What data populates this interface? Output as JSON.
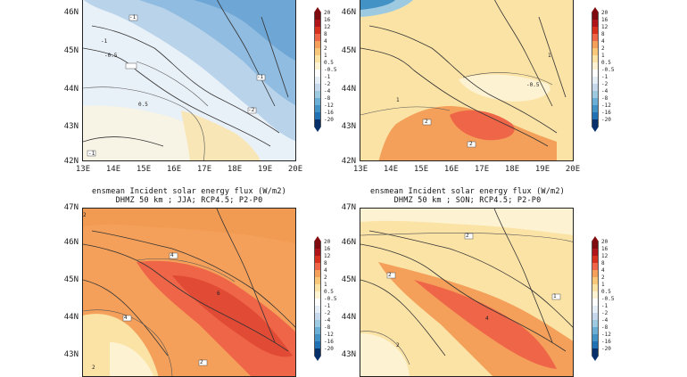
{
  "panels": [
    {
      "id": "top-left",
      "title_line1": "",
      "title_line2": "",
      "lat_labels": [
        "46N",
        "45N",
        "44N",
        "43N",
        "42N"
      ],
      "lon_labels": [
        "13E",
        "14E",
        "15E",
        "16E",
        "17E",
        "18E",
        "19E",
        "20E"
      ],
      "contour_labels": [
        "-1",
        "-0.5",
        "0.5",
        "-1",
        "-1",
        "-2",
        "-1"
      ]
    },
    {
      "id": "top-right",
      "title_line1": "",
      "title_line2": "",
      "lat_labels": [
        "46N",
        "45N",
        "44N",
        "43N",
        "42N"
      ],
      "lon_labels": [
        "13E",
        "14E",
        "15E",
        "16E",
        "17E",
        "18E",
        "19E",
        "20E"
      ],
      "contour_labels": [
        "-0.5",
        "1",
        "2",
        "2",
        "1"
      ]
    },
    {
      "id": "bottom-left",
      "title_line1": "ensmean Incident solar energy flux (W/m2)",
      "title_line2": "DHMZ 50 km ; JJA; RCP4.5; P2-P0",
      "lat_labels": [
        "47N",
        "46N",
        "45N",
        "44N",
        "43N"
      ],
      "lon_labels": [],
      "contour_labels": [
        "2",
        "4",
        "6",
        "4",
        "2",
        "2"
      ]
    },
    {
      "id": "bottom-right",
      "title_line1": "ensmean Incident solar energy flux (W/m2)",
      "title_line2": "DHMZ 50 km ; SON; RCP4.5; P2-P0",
      "lat_labels": [
        "47N",
        "46N",
        "45N",
        "44N",
        "43N"
      ],
      "lon_labels": [],
      "contour_labels": [
        "2",
        "1",
        "2",
        "4",
        "2"
      ]
    }
  ],
  "colorbar": {
    "labels": [
      "20",
      "16",
      "12",
      "8",
      "4",
      "2",
      "1",
      "0.5",
      "-0.5",
      "-1",
      "-2",
      "-4",
      "-8",
      "-12",
      "-16",
      "-20"
    ],
    "colors": [
      "#7f0a10",
      "#b0141b",
      "#d7301f",
      "#ef6548",
      "#f4a05a",
      "#f8c77a",
      "#fbe3a6",
      "#fdf3d3",
      "#ffffff",
      "#e6eef7",
      "#c6d9ec",
      "#9ecae1",
      "#6baed6",
      "#4292c6",
      "#2171b5",
      "#08306b"
    ]
  }
}
